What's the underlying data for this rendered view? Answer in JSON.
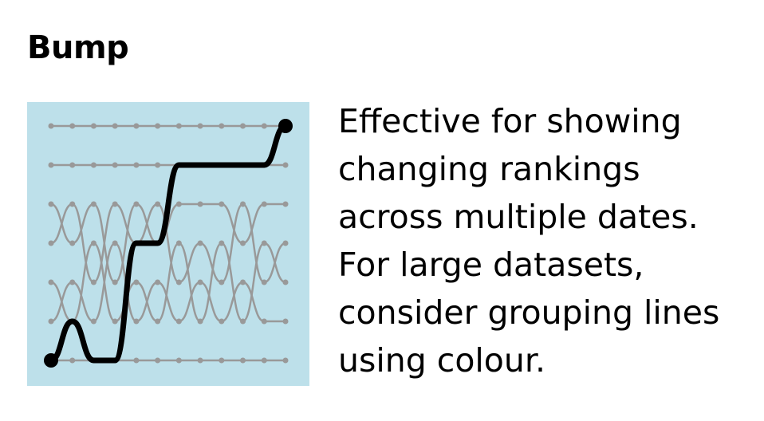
{
  "title": "Bump",
  "description_lines": [
    "Effective for showing",
    "changing rankings",
    "across multiple dates.",
    "For large datasets,",
    "consider grouping lines",
    "using colour."
  ],
  "colors": {
    "panel_background": "#bde0ea",
    "background_lines": "#999999",
    "highlight_line": "#000000",
    "text": "#000000"
  },
  "chart_data": {
    "type": "line",
    "subtype": "bump",
    "title": "",
    "xlabel": "",
    "ylabel": "",
    "rank_count": 7,
    "date_count": 12,
    "ylim": [
      7,
      1
    ],
    "series": [
      {
        "highlight": false,
        "ranks": [
          1,
          1,
          1,
          1,
          1,
          1,
          1,
          1,
          1,
          1,
          1,
          1
        ]
      },
      {
        "highlight": false,
        "ranks": [
          2,
          2,
          2,
          2,
          2,
          2,
          2,
          2,
          2,
          2,
          2,
          2
        ]
      },
      {
        "highlight": false,
        "ranks": [
          3,
          4,
          3,
          5,
          3,
          4,
          3,
          3,
          3,
          4,
          3,
          3
        ]
      },
      {
        "highlight": false,
        "ranks": [
          4,
          3,
          5,
          3,
          4,
          3,
          5,
          4,
          5,
          3,
          5,
          4
        ]
      },
      {
        "highlight": false,
        "ranks": [
          5,
          6,
          4,
          6,
          5,
          6,
          4,
          6,
          4,
          6,
          4,
          5
        ]
      },
      {
        "highlight": false,
        "ranks": [
          6,
          5,
          6,
          4,
          6,
          5,
          6,
          5,
          6,
          5,
          6,
          6
        ]
      },
      {
        "highlight": false,
        "ranks": [
          7,
          7,
          7,
          7,
          7,
          7,
          7,
          7,
          7,
          7,
          7,
          7
        ]
      },
      {
        "highlight": true,
        "ranks": [
          7,
          6,
          7,
          7,
          4,
          4,
          2,
          2,
          2,
          2,
          2,
          1
        ]
      }
    ]
  }
}
